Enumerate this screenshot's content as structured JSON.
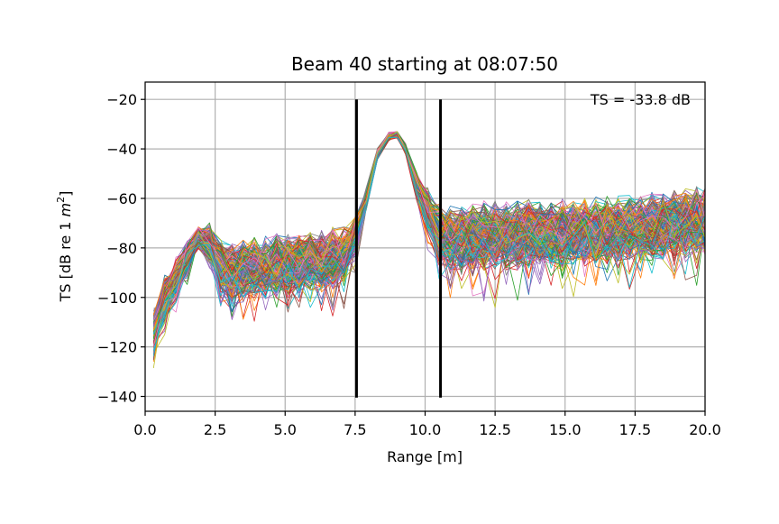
{
  "chart_data": {
    "type": "line",
    "title": "Beam 40 starting at 08:07:50",
    "xlabel": "Range [m]",
    "ylabel_parts": [
      "TS [dB re 1 ",
      "m",
      "2",
      "]"
    ],
    "xlim": [
      0,
      20
    ],
    "ylim": [
      -146,
      -13
    ],
    "xticks": [
      0.0,
      2.5,
      5.0,
      7.5,
      10.0,
      12.5,
      15.0,
      17.5,
      20.0
    ],
    "xtick_labels": [
      "0.0",
      "2.5",
      "5.0",
      "7.5",
      "10.0",
      "12.5",
      "15.0",
      "17.5",
      "20.0"
    ],
    "yticks": [
      -20,
      -40,
      -60,
      -80,
      -100,
      -120,
      -140
    ],
    "ytick_labels": [
      "−20",
      "−40",
      "−60",
      "−80",
      "−100",
      "−120",
      "−140"
    ],
    "grid": true,
    "annotation": "TS = -33.8 dB",
    "annotation_position": "top-right",
    "vlines": [
      {
        "x": 7.55,
        "ymin": -140.5,
        "ymax": -20
      },
      {
        "x": 10.55,
        "ymin": -140.5,
        "ymax": -20
      }
    ],
    "envelope": {
      "x": [
        0.3,
        0.7,
        1.1,
        1.5,
        1.9,
        2.3,
        2.7,
        3.1,
        3.5,
        3.9,
        4.3,
        4.7,
        5.1,
        5.5,
        5.9,
        6.3,
        6.7,
        7.1,
        7.5,
        7.9,
        8.3,
        8.7,
        9.0,
        9.3,
        9.7,
        10.1,
        10.5,
        10.9,
        11.3,
        11.7,
        12.1,
        12.5,
        12.9,
        13.3,
        13.7,
        14.1,
        14.5,
        14.9,
        15.3,
        15.7,
        16.1,
        16.5,
        16.9,
        17.3,
        17.7,
        18.1,
        18.5,
        18.9,
        19.3,
        19.7,
        20.0
      ],
      "center": [
        -114,
        -100,
        -92,
        -84,
        -76,
        -78,
        -88,
        -90,
        -89,
        -88,
        -88,
        -87,
        -87,
        -86,
        -85,
        -85,
        -84,
        -83,
        -75,
        -60,
        -42,
        -35,
        -34,
        -40,
        -55,
        -65,
        -74,
        -76,
        -76,
        -76,
        -75,
        -75,
        -75,
        -75,
        -74,
        -74,
        -74,
        -74,
        -73,
        -73,
        -73,
        -72,
        -72,
        -72,
        -72,
        -71,
        -71,
        -70,
        -70,
        -69,
        -69
      ],
      "spread": [
        8,
        8,
        7,
        6,
        4,
        7,
        10,
        11,
        11,
        11,
        11,
        11,
        11,
        11,
        11,
        11,
        11,
        10,
        7,
        4,
        2,
        1.5,
        1.5,
        2,
        5,
        8,
        11,
        12,
        12,
        12,
        12,
        12,
        12,
        12,
        12,
        12,
        12,
        12,
        12,
        12,
        12,
        12,
        12,
        12,
        12,
        12,
        12,
        12,
        12,
        12,
        12
      ]
    },
    "series_count": 220,
    "colors": [
      "#1f77b4",
      "#ff7f0e",
      "#2ca02c",
      "#d62728",
      "#9467bd",
      "#8c564b",
      "#e377c2",
      "#7f7f7f",
      "#bcbd22",
      "#17becf"
    ]
  }
}
